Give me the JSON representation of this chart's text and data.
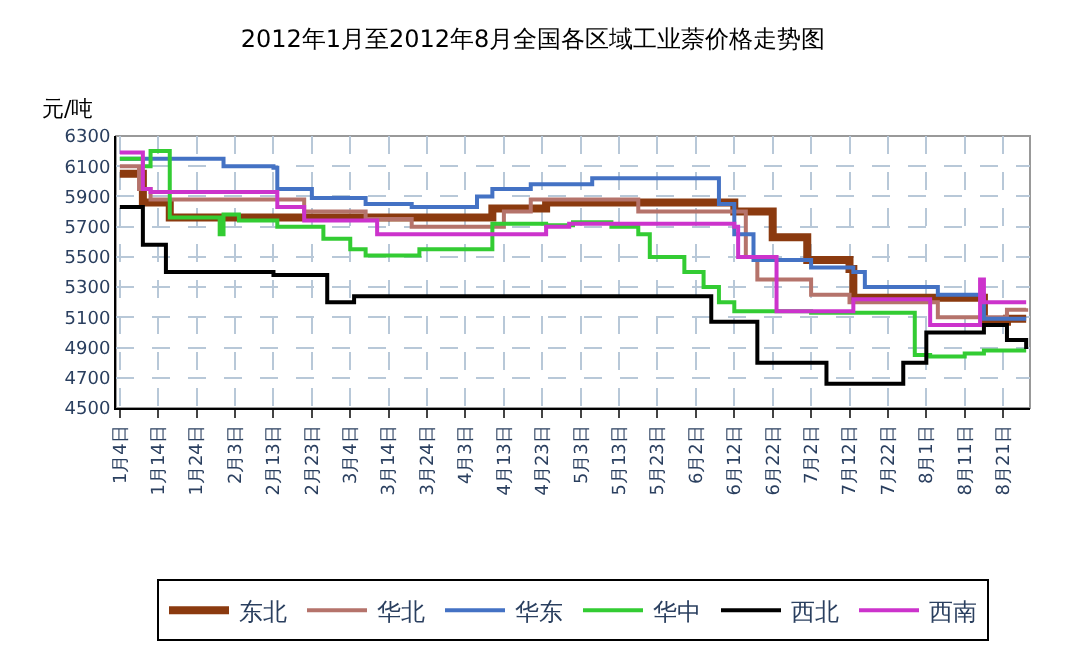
{
  "chart_data": {
    "type": "step",
    "title": "2012年1月至2012年8月全国各区域工业萘价格走势图",
    "ylabel": "元/吨",
    "xlim": [
      "2012-01-03",
      "2012-08-28"
    ],
    "xticks": [
      {
        "value": "2012-01-04",
        "label": "1月4日"
      },
      {
        "value": "2012-01-14",
        "label": "1月14日"
      },
      {
        "value": "2012-01-24",
        "label": "1月24日"
      },
      {
        "value": "2012-02-03",
        "label": "2月3日"
      },
      {
        "value": "2012-02-13",
        "label": "2月13日"
      },
      {
        "value": "2012-02-23",
        "label": "2月23日"
      },
      {
        "value": "2012-03-04",
        "label": "3月4日"
      },
      {
        "value": "2012-03-14",
        "label": "3月14日"
      },
      {
        "value": "2012-03-24",
        "label": "3月24日"
      },
      {
        "value": "2012-04-03",
        "label": "4月3日"
      },
      {
        "value": "2012-04-13",
        "label": "4月13日"
      },
      {
        "value": "2012-04-23",
        "label": "4月23日"
      },
      {
        "value": "2012-05-03",
        "label": "5月3日"
      },
      {
        "value": "2012-05-13",
        "label": "5月13日"
      },
      {
        "value": "2012-05-23",
        "label": "5月23日"
      },
      {
        "value": "2012-06-02",
        "label": "6月2日"
      },
      {
        "value": "2012-06-12",
        "label": "6月12日"
      },
      {
        "value": "2012-06-22",
        "label": "6月22日"
      },
      {
        "value": "2012-07-02",
        "label": "7月2日"
      },
      {
        "value": "2012-07-12",
        "label": "7月12日"
      },
      {
        "value": "2012-07-22",
        "label": "7月22日"
      },
      {
        "value": "2012-08-01",
        "label": "8月1日"
      },
      {
        "value": "2012-08-11",
        "label": "8月11日"
      },
      {
        "value": "2012-08-21",
        "label": "8月21日"
      }
    ],
    "ylim": [
      4500,
      6300
    ],
    "yticks": [
      4500,
      4700,
      4900,
      5100,
      5300,
      5500,
      5700,
      5900,
      6100,
      6300
    ],
    "grid": true,
    "legend": "bottom",
    "series": [
      {
        "name": "东北",
        "color": "#8b3a0f",
        "x": [
          "2012-01-04",
          "2012-01-08",
          "2012-01-10",
          "2012-01-16",
          "2012-01-17",
          "2012-04-06",
          "2012-04-10",
          "2012-04-24",
          "2012-06-10",
          "2012-06-12",
          "2012-06-15",
          "2012-06-22",
          "2012-07-01",
          "2012-07-12",
          "2012-07-13",
          "2012-08-14",
          "2012-08-16",
          "2012-08-22",
          "2012-08-27"
        ],
        "values": [
          6050,
          6050,
          5860,
          5860,
          5760,
          5760,
          5820,
          5860,
          5860,
          5800,
          5800,
          5630,
          5480,
          5420,
          5230,
          5230,
          5070,
          5090,
          5090
        ]
      },
      {
        "name": "华北",
        "color": "#b5736b",
        "x": [
          "2012-01-04",
          "2012-01-09",
          "2012-01-12",
          "2012-02-13",
          "2012-02-21",
          "2012-03-08",
          "2012-03-20",
          "2012-04-13",
          "2012-04-20",
          "2012-05-11",
          "2012-05-18",
          "2012-06-08",
          "2012-06-15",
          "2012-06-18",
          "2012-07-02",
          "2012-07-12",
          "2012-08-01",
          "2012-08-04",
          "2012-08-22",
          "2012-08-27"
        ],
        "values": [
          6100,
          5950,
          5880,
          5880,
          5800,
          5750,
          5700,
          5800,
          5880,
          5880,
          5800,
          5800,
          5500,
          5350,
          5250,
          5200,
          5200,
          5100,
          5150,
          5160
        ]
      },
      {
        "name": "华东",
        "color": "#4472c4",
        "x": [
          "2012-01-04",
          "2012-01-12",
          "2012-01-31",
          "2012-02-13",
          "2012-02-14",
          "2012-02-21",
          "2012-02-23",
          "2012-03-06",
          "2012-03-08",
          "2012-03-20",
          "2012-03-30",
          "2012-04-06",
          "2012-04-10",
          "2012-04-20",
          "2012-05-06",
          "2012-06-05",
          "2012-06-08",
          "2012-06-12",
          "2012-06-17",
          "2012-07-02",
          "2012-07-13",
          "2012-07-16",
          "2012-08-02",
          "2012-08-04",
          "2012-08-16",
          "2012-08-27"
        ],
        "values": [
          6150,
          6150,
          6100,
          6090,
          5950,
          5950,
          5890,
          5890,
          5850,
          5830,
          5830,
          5900,
          5950,
          5980,
          6020,
          6020,
          5850,
          5650,
          5480,
          5430,
          5400,
          5300,
          5300,
          5250,
          5090,
          5090
        ]
      },
      {
        "name": "华中",
        "color": "#33cc33",
        "x": [
          "2012-01-04",
          "2012-01-10",
          "2012-01-12",
          "2012-01-15",
          "2012-01-17",
          "2012-01-29",
          "2012-01-30",
          "2012-01-31",
          "2012-02-04",
          "2012-02-12",
          "2012-02-14",
          "2012-02-26",
          "2012-03-04",
          "2012-03-08",
          "2012-03-18",
          "2012-03-22",
          "2012-04-08",
          "2012-04-10",
          "2012-04-24",
          "2012-05-01",
          "2012-05-11",
          "2012-05-18",
          "2012-05-21",
          "2012-05-28",
          "2012-05-30",
          "2012-06-04",
          "2012-06-08",
          "2012-06-12",
          "2012-07-02",
          "2012-07-22",
          "2012-07-29",
          "2012-08-02",
          "2012-08-11",
          "2012-08-16",
          "2012-08-27"
        ],
        "values": [
          6150,
          6100,
          6200,
          6200,
          5760,
          5760,
          5650,
          5780,
          5740,
          5740,
          5700,
          5620,
          5550,
          5510,
          5510,
          5550,
          5550,
          5720,
          5710,
          5730,
          5700,
          5650,
          5500,
          5500,
          5400,
          5300,
          5200,
          5140,
          5130,
          5130,
          4850,
          4840,
          4860,
          4880,
          4880
        ]
      },
      {
        "name": "西北",
        "color": "#000000",
        "x": [
          "2012-01-04",
          "2012-01-09",
          "2012-01-10",
          "2012-01-15",
          "2012-01-16",
          "2012-02-13",
          "2012-02-26",
          "2012-02-27",
          "2012-03-04",
          "2012-03-05",
          "2012-06-04",
          "2012-06-06",
          "2012-06-16",
          "2012-06-18",
          "2012-07-05",
          "2012-07-06",
          "2012-07-25",
          "2012-07-26",
          "2012-07-31",
          "2012-08-01",
          "2012-08-16",
          "2012-08-22",
          "2012-08-27"
        ],
        "values": [
          5830,
          5830,
          5580,
          5580,
          5400,
          5380,
          5380,
          5200,
          5200,
          5240,
          5240,
          5070,
          5070,
          4800,
          4800,
          4660,
          4660,
          4800,
          4800,
          5000,
          5050,
          4950,
          4890
        ]
      },
      {
        "name": "西南",
        "color": "#cc33cc",
        "x": [
          "2012-01-04",
          "2012-01-09",
          "2012-01-10",
          "2012-01-12",
          "2012-02-13",
          "2012-02-14",
          "2012-02-21",
          "2012-03-09",
          "2012-03-11",
          "2012-04-20",
          "2012-04-24",
          "2012-04-30",
          "2012-06-02",
          "2012-06-12",
          "2012-06-13",
          "2012-06-22",
          "2012-06-23",
          "2012-07-12",
          "2012-07-13",
          "2012-08-01",
          "2012-08-02",
          "2012-08-14",
          "2012-08-15",
          "2012-08-16",
          "2012-08-27"
        ],
        "values": [
          6190,
          6190,
          5950,
          5930,
          5930,
          5830,
          5740,
          5740,
          5650,
          5650,
          5700,
          5720,
          5720,
          5700,
          5500,
          5500,
          5140,
          5140,
          5220,
          5220,
          5050,
          5050,
          5350,
          5200,
          5200
        ]
      }
    ]
  }
}
